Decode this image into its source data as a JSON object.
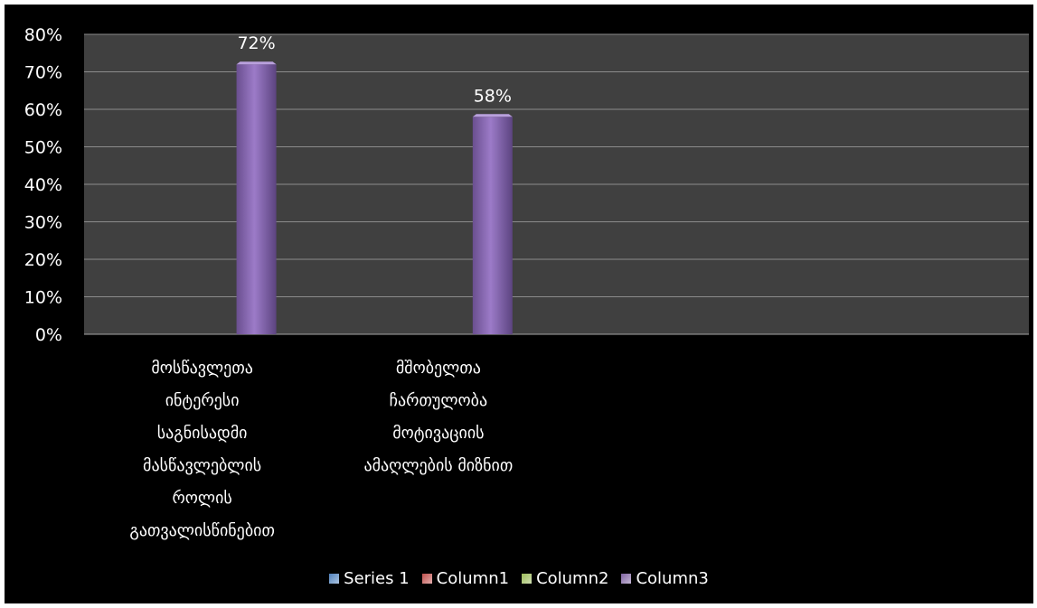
{
  "chart_data": {
    "type": "bar",
    "categories": [
      [
        "მოსწავლეთა",
        "ინტერესი",
        "საგნისადმი",
        "მასწავლებლის",
        "როლის",
        "გათვალისწინებით"
      ],
      [
        "მშობელთა",
        "ჩართულობა",
        "მოტივაციის",
        "ამაღლების მიზნით"
      ],
      [],
      []
    ],
    "series": [
      {
        "name": "Series 1",
        "color": "#4f81bd",
        "values": [
          null,
          null,
          null,
          null
        ]
      },
      {
        "name": "Column1",
        "color": "#c0504d",
        "values": [
          null,
          null,
          null,
          null
        ]
      },
      {
        "name": "Column2",
        "color": "#9bbb59",
        "values": [
          null,
          null,
          null,
          null
        ]
      },
      {
        "name": "Column3",
        "color": "#8064a2",
        "values": [
          0.72,
          0.58,
          null,
          null
        ]
      }
    ],
    "data_labels": [
      "72%",
      "58%"
    ],
    "y_ticks": [
      "0%",
      "10%",
      "20%",
      "30%",
      "40%",
      "50%",
      "60%",
      "70%",
      "80%"
    ],
    "ylim": [
      0,
      0.8
    ],
    "grid": true,
    "legend_position": "bottom",
    "plot_background": "#404040",
    "background": "#000000"
  }
}
